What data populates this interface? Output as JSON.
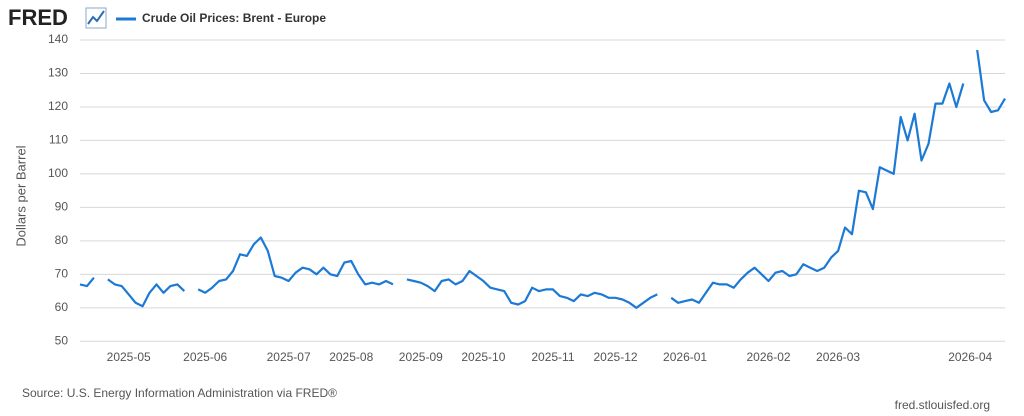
{
  "logo": "FRED",
  "chart_data": {
    "type": "line",
    "y_label": "Dollars per Barrel",
    "source": "Source: U.S. Energy Information Administration via FRED®",
    "site": "fred.stlouisfed.org",
    "ylim": [
      48,
      140
    ],
    "yticks": [
      50,
      60,
      70,
      80,
      90,
      100,
      110,
      120,
      130,
      140
    ],
    "grid": true,
    "categories": [
      null,
      null,
      null,
      null,
      null,
      null,
      null,
      "2025-05",
      null,
      null,
      null,
      null,
      null,
      null,
      null,
      null,
      null,
      null,
      "2025-06",
      null,
      null,
      null,
      null,
      null,
      null,
      null,
      null,
      null,
      null,
      null,
      "2025-07",
      null,
      null,
      null,
      null,
      null,
      null,
      null,
      null,
      "2025-08",
      null,
      null,
      null,
      null,
      null,
      null,
      null,
      null,
      null,
      "2025-09",
      null,
      null,
      null,
      null,
      null,
      null,
      null,
      null,
      "2025-10",
      null,
      null,
      null,
      null,
      null,
      null,
      null,
      null,
      null,
      "2025-11",
      null,
      null,
      null,
      null,
      null,
      null,
      null,
      null,
      "2025-12",
      null,
      null,
      null,
      null,
      null,
      null,
      null,
      null,
      null,
      "2026-01",
      null,
      null,
      null,
      null,
      null,
      null,
      null,
      null,
      null,
      null,
      null,
      "2026-02",
      null,
      null,
      null,
      null,
      null,
      null,
      null,
      null,
      null,
      "2026-03",
      null,
      null,
      null,
      null,
      null,
      null,
      null,
      null,
      null,
      null,
      null,
      null,
      null,
      null,
      null,
      null,
      null,
      null,
      "2026-04",
      null,
      null,
      null,
      null,
      null
    ],
    "series": [
      {
        "name": "Crude Oil Prices: Brent - Europe",
        "color": "#1c7ad6",
        "values": [
          67,
          66.5,
          69,
          null,
          68.5,
          67,
          66.5,
          64,
          61.5,
          60.5,
          64.5,
          67,
          64.5,
          66.5,
          67,
          65,
          null,
          65.5,
          64.5,
          66,
          68,
          68.5,
          71,
          76,
          75.5,
          79,
          81,
          77,
          69.5,
          69,
          68,
          70.5,
          72,
          71.5,
          70,
          72,
          70,
          69.5,
          73.5,
          74,
          70,
          67,
          67.5,
          67,
          68,
          67,
          null,
          68.5,
          68,
          67.5,
          66.5,
          65,
          68,
          68.5,
          67,
          68,
          71,
          69.5,
          68,
          66,
          65.5,
          65,
          61.5,
          61,
          62,
          66,
          65,
          65.5,
          65.5,
          63.5,
          63,
          62,
          64,
          63.5,
          64.5,
          64,
          63,
          63,
          62.5,
          61.5,
          60,
          61.5,
          63,
          64,
          null,
          63,
          61.5,
          62,
          62.5,
          61.5,
          64.5,
          67.5,
          67,
          67,
          66,
          68.5,
          70.5,
          72,
          70,
          68,
          70.5,
          71,
          69.5,
          70,
          73,
          72,
          71,
          72,
          75,
          77,
          84,
          82,
          95,
          94.5,
          89.5,
          102,
          101,
          100,
          117,
          110,
          118,
          104,
          109,
          121,
          121,
          127,
          120,
          127,
          null,
          137,
          122,
          118.5,
          119,
          122.5
        ]
      }
    ]
  }
}
